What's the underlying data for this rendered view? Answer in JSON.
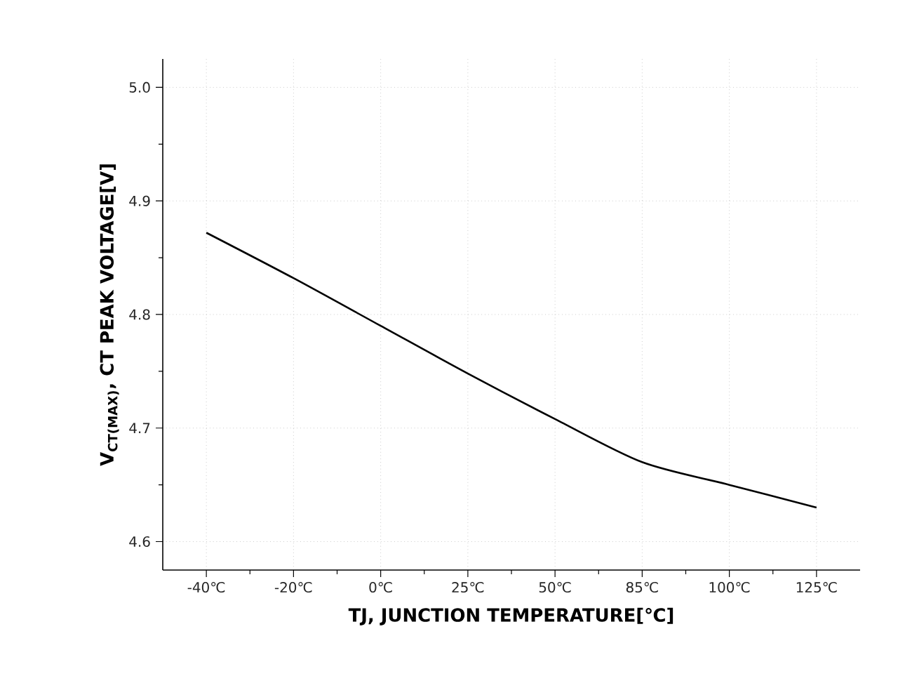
{
  "chart_data": {
    "type": "line",
    "xlabel": "TJ, JUNCTION TEMPERATURE[℃]",
    "ylabel": "V$_{CT(MAX)}$, CT PEAK VOLTAGE[V]",
    "categories": [
      "-40℃",
      "-20℃",
      "0℃",
      "25℃",
      "50℃",
      "85℃",
      "100℃",
      "125℃"
    ],
    "series": [
      {
        "color": "#000000",
        "values": [
          4.872,
          4.832,
          4.79,
          4.748,
          4.708,
          4.67,
          4.65,
          4.63
        ]
      }
    ],
    "ylim": [
      4.575,
      5.025
    ],
    "yticks": [
      {
        "value": 4.6,
        "label": "4.6"
      },
      {
        "value": 4.7,
        "label": "4.7"
      },
      {
        "value": 4.8,
        "label": "4.8"
      },
      {
        "value": 4.9,
        "label": "4.9"
      },
      {
        "value": 5.0,
        "label": "5.0"
      }
    ],
    "grid": true
  }
}
